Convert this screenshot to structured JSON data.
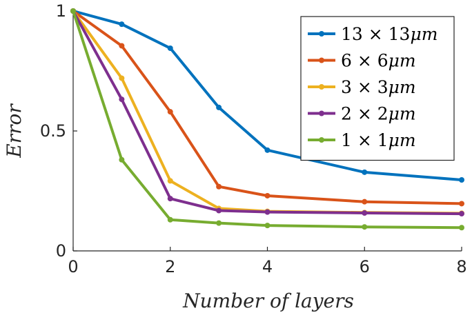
{
  "chart_data": {
    "type": "line",
    "title": "",
    "xlabel": "Number of layers",
    "ylabel": "Error",
    "xlim": [
      0,
      8
    ],
    "ylim": [
      0,
      1
    ],
    "xticks": [
      0,
      2,
      4,
      6,
      8
    ],
    "yticks": [
      0,
      0.5,
      1
    ],
    "xtick_labels": [
      "0",
      "2",
      "4",
      "6",
      "8"
    ],
    "ytick_labels": [
      "0",
      "0.5",
      "1"
    ],
    "grid": false,
    "legend_position": "top-right",
    "series": [
      {
        "name": "13 × 13μm",
        "name_parts": [
          "13 × 13",
          "μm"
        ],
        "color": "#0072BD",
        "x": [
          0,
          1,
          2,
          3,
          4,
          6,
          8
        ],
        "y": [
          1.0,
          0.945,
          0.845,
          0.598,
          0.42,
          0.328,
          0.296
        ]
      },
      {
        "name": "6 × 6μm",
        "name_parts": [
          "6 × 6",
          "μm"
        ],
        "color": "#D95319",
        "x": [
          0,
          1,
          2,
          3,
          4,
          6,
          8
        ],
        "y": [
          1.0,
          0.855,
          0.58,
          0.268,
          0.23,
          0.205,
          0.197
        ]
      },
      {
        "name": "3 × 3μm",
        "name_parts": [
          "3 × 3",
          "μm"
        ],
        "color": "#EDB120",
        "x": [
          0,
          1,
          2,
          3,
          4,
          6,
          8
        ],
        "y": [
          1.0,
          0.72,
          0.292,
          0.177,
          0.165,
          0.16,
          0.157
        ]
      },
      {
        "name": "2 × 2μm",
        "name_parts": [
          "2 × 2",
          "μm"
        ],
        "color": "#7E2F8E",
        "x": [
          0,
          1,
          2,
          3,
          4,
          6,
          8
        ],
        "y": [
          1.0,
          0.632,
          0.218,
          0.168,
          0.162,
          0.158,
          0.155
        ]
      },
      {
        "name": "1 × 1μm",
        "name_parts": [
          "1 × 1",
          "μm"
        ],
        "color": "#77AC30",
        "x": [
          0,
          1,
          2,
          3,
          4,
          6,
          8
        ],
        "y": [
          1.0,
          0.38,
          0.13,
          0.116,
          0.106,
          0.1,
          0.097
        ]
      }
    ]
  }
}
